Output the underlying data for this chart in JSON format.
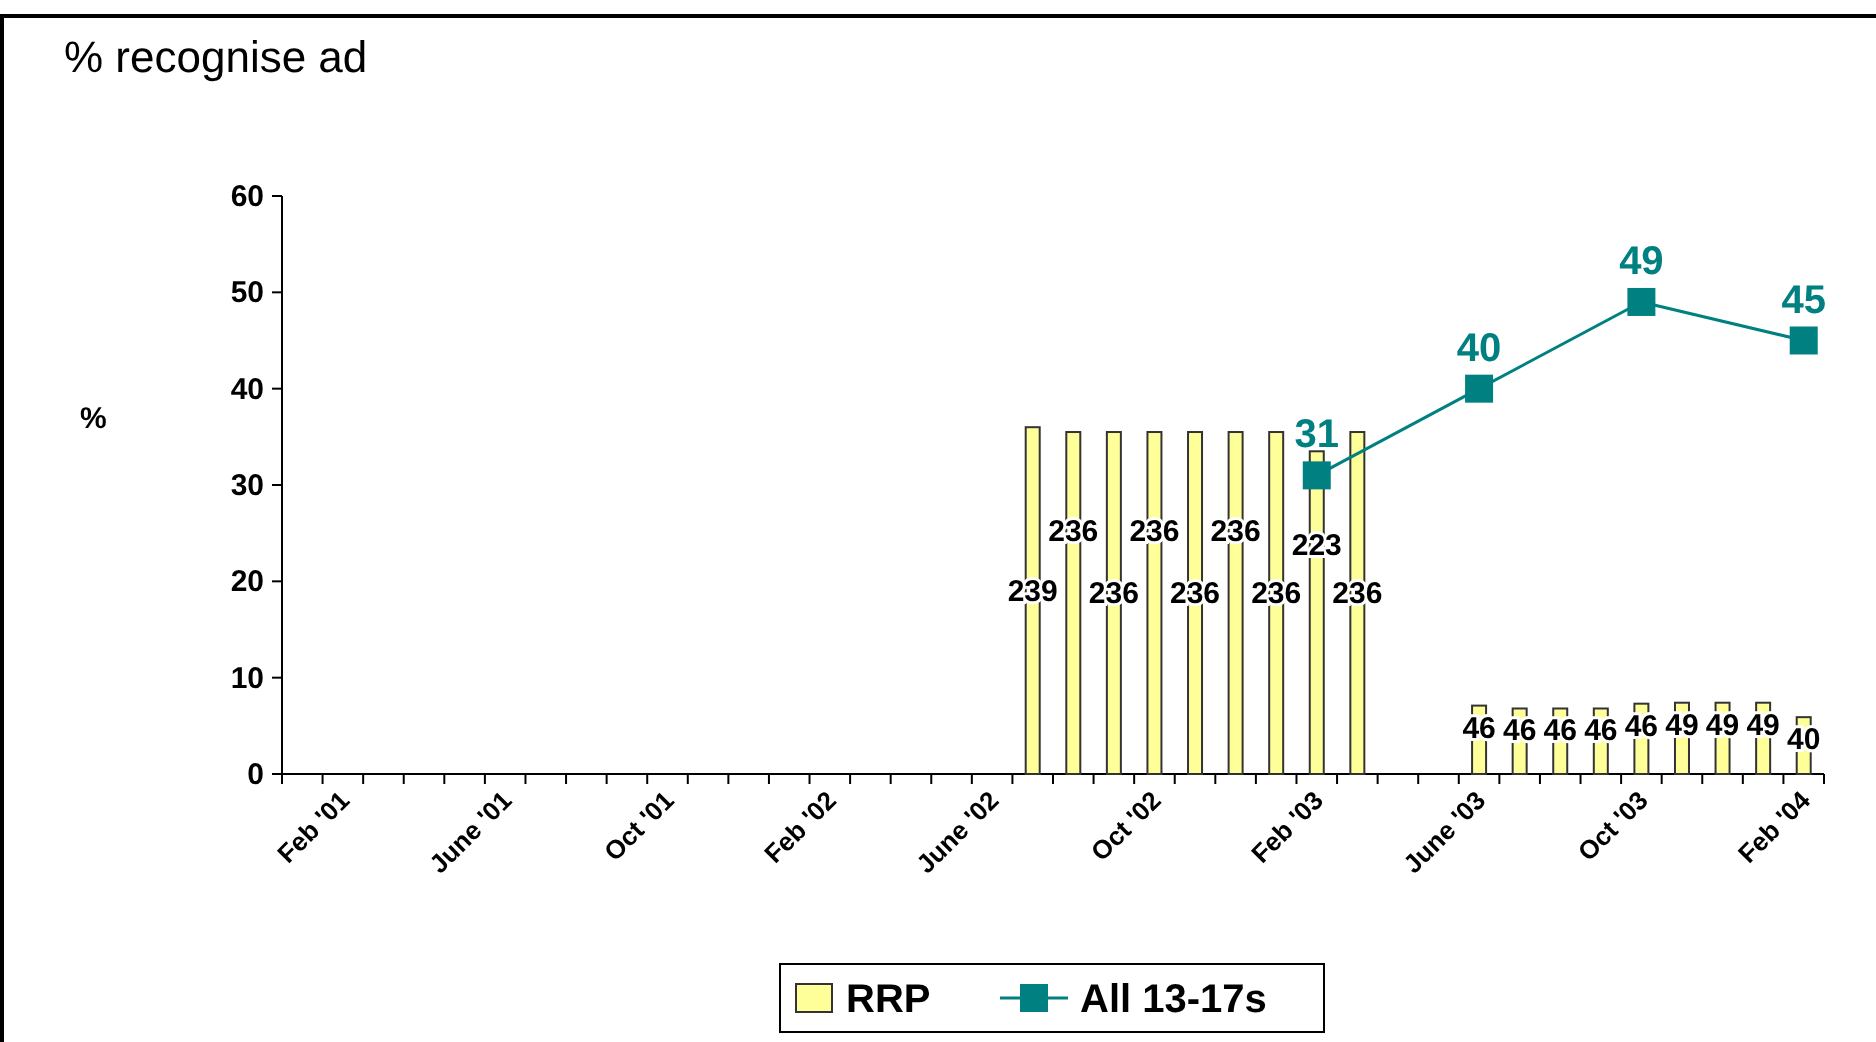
{
  "chart_data": {
    "type": "bar",
    "title": "% recognise ad",
    "ylabel": "%",
    "categories": [
      null,
      "Feb '01",
      null,
      null,
      null,
      "June '01",
      null,
      null,
      null,
      "Oct '01",
      null,
      null,
      null,
      "Feb '02",
      null,
      null,
      null,
      "June '02",
      null,
      null,
      null,
      "Oct '02",
      null,
      null,
      null,
      "Feb '03",
      null,
      null,
      null,
      "June '03",
      null,
      null,
      null,
      "Oct '03",
      null,
      null,
      null,
      "Feb '04"
    ],
    "series": [
      {
        "name": "RRP",
        "color": "#ffff99",
        "values": [
          null,
          null,
          null,
          null,
          null,
          null,
          null,
          null,
          null,
          null,
          null,
          null,
          null,
          null,
          null,
          null,
          null,
          null,
          36,
          35.5,
          35.5,
          35.5,
          35.5,
          35.5,
          35.5,
          33.5,
          35.5,
          null,
          null,
          7.1,
          6.8,
          6.8,
          6.8,
          7.3,
          7.4,
          7.4,
          7.4,
          5.9
        ]
      },
      {
        "name": "All 13-17s",
        "type": "line",
        "color": "#008080",
        "marker": "square",
        "values": [
          null,
          null,
          null,
          null,
          null,
          null,
          null,
          null,
          null,
          null,
          null,
          null,
          null,
          null,
          null,
          null,
          null,
          null,
          null,
          null,
          null,
          null,
          null,
          null,
          null,
          31,
          null,
          null,
          null,
          40,
          null,
          null,
          null,
          49,
          null,
          null,
          null,
          45
        ],
        "value_labels": [
          null,
          null,
          null,
          null,
          null,
          null,
          null,
          null,
          null,
          null,
          null,
          null,
          null,
          null,
          null,
          null,
          null,
          null,
          null,
          null,
          null,
          null,
          null,
          null,
          null,
          "31",
          null,
          null,
          null,
          "40",
          null,
          null,
          null,
          "49",
          null,
          null,
          null,
          "45"
        ]
      }
    ],
    "annotations": [
      "239",
      "236",
      "236",
      "236",
      "236",
      "236",
      "236",
      "223",
      "236",
      "46",
      "46",
      "46",
      "46",
      "46",
      "49",
      "49",
      "49",
      "40"
    ],
    "ylim": [
      0,
      60
    ],
    "yticks": [
      0,
      10,
      20,
      30,
      40,
      50,
      60
    ],
    "legend": "bottom"
  }
}
